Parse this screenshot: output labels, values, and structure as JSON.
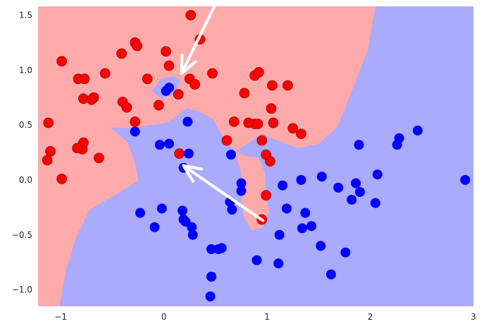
{
  "chart_data": {
    "type": "scatter",
    "title": "",
    "xlabel": "",
    "ylabel": "",
    "xlim": [
      -1.22,
      3.0
    ],
    "ylim": [
      -1.15,
      1.58
    ],
    "grid": false,
    "legend": "none",
    "x_ticks": [
      -1,
      0,
      1,
      2,
      3
    ],
    "x_tick_labels": [
      "−1",
      "0",
      "1",
      "2",
      "3"
    ],
    "y_ticks": [
      -1.0,
      -0.5,
      0.0,
      0.5,
      1.0,
      1.5
    ],
    "y_tick_labels": [
      "−1.0",
      "−0.5",
      "0.0",
      "0.5",
      "1.0",
      "1.5"
    ],
    "colors": {
      "region_class0": "#ffaaaa",
      "region_class1": "#aaaaff",
      "points_class0": "#ff0000",
      "points_class1": "#0000ff",
      "arrow": "#ffffff"
    },
    "decision_boundary": [
      [
        1.03,
        1.58
      ],
      [
        0.95,
        1.35
      ],
      [
        0.86,
        1.12
      ],
      [
        0.76,
        0.92
      ],
      [
        0.62,
        0.75
      ],
      [
        0.47,
        0.56
      ],
      [
        0.32,
        0.63
      ],
      [
        0.22,
        0.65
      ],
      [
        0.12,
        0.58
      ],
      [
        0.02,
        0.52
      ],
      [
        -0.12,
        0.5
      ],
      [
        -0.33,
        0.47
      ],
      [
        -0.52,
        0.48
      ],
      [
        -0.35,
        0.34
      ],
      [
        -0.28,
        0.15
      ],
      [
        -0.25,
        -0.01
      ],
      [
        -0.48,
        -0.14
      ],
      [
        -0.72,
        -0.27
      ],
      [
        -0.85,
        -0.52
      ],
      [
        -0.95,
        -0.82
      ],
      [
        -1.01,
        -1.15
      ]
    ],
    "class0_region_detached": [
      [
        0.7,
        0.26
      ],
      [
        0.78,
        0.22
      ],
      [
        0.92,
        0.2
      ],
      [
        0.98,
        0.06
      ],
      [
        0.99,
        -0.14
      ],
      [
        1.02,
        -0.28
      ],
      [
        0.96,
        -0.43
      ],
      [
        0.85,
        -0.46
      ],
      [
        0.78,
        -0.34
      ],
      [
        0.75,
        -0.22
      ],
      [
        0.77,
        -0.06
      ],
      [
        0.74,
        0.1
      ],
      [
        0.7,
        0.2
      ]
    ],
    "class0_region_lower_right": [
      [
        0.95,
        0.42
      ],
      [
        1.1,
        0.36
      ],
      [
        1.3,
        0.29
      ],
      [
        1.5,
        0.33
      ],
      [
        1.68,
        0.48
      ],
      [
        1.83,
        0.83
      ],
      [
        1.98,
        1.2
      ],
      [
        2.05,
        1.58
      ]
    ],
    "class1_region_island": [
      [
        -0.12,
        0.81
      ],
      [
        -0.03,
        0.92
      ],
      [
        0.1,
        0.95
      ],
      [
        0.16,
        0.9
      ],
      [
        0.1,
        0.78
      ],
      [
        -0.02,
        0.74
      ]
    ],
    "class1_region_notch": [
      [
        0.05,
        0.33
      ],
      [
        0.14,
        0.28
      ],
      [
        0.24,
        0.24
      ],
      [
        0.18,
        0.14
      ],
      [
        0.08,
        0.17
      ]
    ],
    "series": [
      {
        "class": 0,
        "x": [
          0.26,
          0.35,
          -0.99,
          -0.83,
          -0.57,
          -0.41,
          -0.28,
          -0.26,
          -0.16,
          0.02,
          0.05,
          0.25,
          0.3,
          0.14,
          0.47,
          -0.68,
          -0.4,
          -0.36,
          -0.78,
          -0.7,
          -0.77,
          -0.28,
          -1.12,
          -1.1,
          -0.79,
          -0.78,
          -0.84,
          -1.13,
          -0.63,
          -0.99,
          0.15,
          0.78,
          0.88,
          0.92,
          0.95,
          1.05,
          1.2,
          1.04,
          0.61,
          0.68,
          0.88,
          0.99,
          0.82,
          0.91,
          1.06,
          1.03,
          1.25,
          1.33,
          0.95,
          -0.05,
          0.99
        ],
        "y": [
          1.5,
          1.28,
          1.08,
          0.92,
          0.97,
          1.15,
          1.25,
          1.22,
          0.92,
          1.17,
          1.04,
          0.92,
          0.87,
          0.78,
          0.97,
          0.75,
          0.71,
          0.66,
          0.74,
          0.73,
          0.92,
          0.53,
          0.52,
          0.26,
          0.28,
          0.34,
          0.29,
          0.18,
          0.2,
          0.01,
          0.24,
          0.79,
          0.95,
          0.98,
          0.36,
          0.86,
          0.86,
          0.65,
          0.36,
          0.53,
          0.51,
          0.23,
          0.52,
          0.51,
          0.52,
          0.17,
          0.47,
          0.42,
          -0.36,
          0.68,
          -0.14
        ]
      },
      {
        "class": 1,
        "x": [
          0.05,
          0.02,
          -0.28,
          0.23,
          -0.04,
          0.05,
          0.19,
          0.24,
          0.65,
          0.18,
          -0.23,
          -0.02,
          0.19,
          0.27,
          0.21,
          0.28,
          -0.09,
          0.64,
          0.66,
          0.75,
          0.75,
          0.46,
          0.53,
          0.56,
          0.46,
          0.46,
          0.45,
          0.9,
          1.11,
          1.15,
          1.12,
          1.34,
          1.19,
          1.37,
          1.43,
          1.33,
          1.53,
          1.62,
          1.76,
          1.82,
          1.86,
          1.9,
          2.05,
          2.07,
          1.69,
          1.52,
          1.89,
          2.28,
          2.26,
          2.46,
          2.92
        ],
        "y": [
          0.84,
          0.81,
          0.44,
          0.53,
          0.32,
          0.33,
          0.11,
          0.24,
          0.23,
          -0.28,
          -0.3,
          -0.26,
          -0.36,
          -0.43,
          -0.38,
          -0.5,
          -0.43,
          -0.2,
          -0.27,
          -0.03,
          -0.1,
          -0.63,
          -0.63,
          -0.62,
          -0.88,
          -0.88,
          -1.06,
          -0.73,
          -0.76,
          -0.05,
          -0.5,
          -0.44,
          -0.26,
          -0.3,
          -0.42,
          0.0,
          0.03,
          -0.86,
          -0.66,
          -0.18,
          -0.03,
          -0.11,
          -0.21,
          0.05,
          -0.07,
          -0.6,
          0.32,
          0.38,
          0.32,
          0.45,
          0.0
        ]
      }
    ],
    "arrows": [
      {
        "from": [
          0.51,
          1.62
        ],
        "to": [
          0.17,
          0.97
        ]
      },
      {
        "from": [
          0.96,
          -0.37
        ],
        "to": [
          0.19,
          0.13
        ]
      }
    ]
  }
}
